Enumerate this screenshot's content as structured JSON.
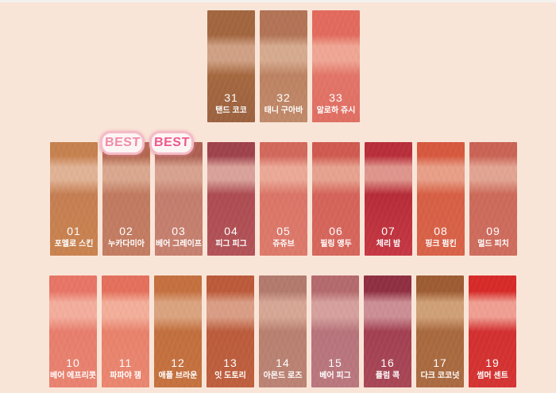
{
  "page": {
    "background": "#f9e5d8",
    "top_strip_color": "#f2f1ee"
  },
  "badges": [
    {
      "label": "BEST",
      "text_color": "#f18ba6",
      "fill": "#fdf5f4",
      "ring": "#f4bcc7"
    },
    {
      "label": "BEST",
      "text_color": "#ee5a8e",
      "fill": "#fdf5f4",
      "ring": "#f4bcc7"
    }
  ],
  "rows": [
    {
      "label": "shades-31-33",
      "shine": {
        "start": 32,
        "end": 45
      },
      "items": [
        {
          "num": "31",
          "name": "탠드 코코",
          "colors": {
            "top": "#a2663f",
            "shine": "#cfa084",
            "main": "#a5683f",
            "bottom": "#9c6240"
          }
        },
        {
          "num": "32",
          "name": "태니 구아바",
          "colors": {
            "top": "#b27356",
            "shine": "#d5aa8e",
            "main": "#bd8262",
            "bottom": "#c08a6a"
          }
        },
        {
          "num": "33",
          "name": "알로하 쥬시",
          "colors": {
            "top": "#e26a5d",
            "shine": "#efa694",
            "main": "#e27568",
            "bottom": "#e06f63"
          }
        }
      ]
    },
    {
      "label": "shades-01-09",
      "shine": {
        "start": 22,
        "end": 33
      },
      "items": [
        {
          "num": "01",
          "name": "포멜로 스킨",
          "colors": {
            "top": "#c6814f",
            "shine": "#e0b295",
            "main": "#c57e52",
            "bottom": "#c9834f"
          }
        },
        {
          "num": "02",
          "name": "누카다미아",
          "colors": {
            "top": "#b2674e",
            "shine": "#d9a78e",
            "main": "#c07a60",
            "bottom": "#c37d62"
          }
        },
        {
          "num": "03",
          "name": "베어 그레이프",
          "colors": {
            "top": "#ad6051",
            "shine": "#d7a28f",
            "main": "#c37d6d",
            "bottom": "#c6806f"
          }
        },
        {
          "num": "04",
          "name": "피그 피그",
          "colors": {
            "top": "#9e424b",
            "shine": "#d8a29a",
            "main": "#ad4c52",
            "bottom": "#b25358"
          }
        },
        {
          "num": "05",
          "name": "쥬쥬브",
          "colors": {
            "top": "#d2685c",
            "shine": "#eba896",
            "main": "#da7568",
            "bottom": "#dd7a6a"
          }
        },
        {
          "num": "06",
          "name": "필링 앵두",
          "colors": {
            "top": "#cf5a50",
            "shine": "#e6a28f",
            "main": "#d4635a",
            "bottom": "#d6675c"
          }
        },
        {
          "num": "07",
          "name": "체리 밤",
          "colors": {
            "top": "#b82e3a",
            "shine": "#de958c",
            "main": "#b62c38",
            "bottom": "#c53843"
          }
        },
        {
          "num": "08",
          "name": "핑크 펌킨",
          "colors": {
            "top": "#d6583e",
            "shine": "#e89f88",
            "main": "#d65f44",
            "bottom": "#d86248"
          }
        },
        {
          "num": "09",
          "name": "멀드 피치",
          "colors": {
            "top": "#c96355",
            "shine": "#e2a492",
            "main": "#cc6a5a",
            "bottom": "#ce6d5e"
          }
        }
      ]
    },
    {
      "label": "shades-10-19",
      "shine": {
        "start": 24,
        "end": 37
      },
      "items": [
        {
          "num": "10",
          "name": "베어 에프리콧",
          "colors": {
            "top": "#e77566",
            "shine": "#f3ad9c",
            "main": "#e77e6d",
            "bottom": "#e98270"
          }
        },
        {
          "num": "11",
          "name": "파파야 잼",
          "colors": {
            "top": "#e3705c",
            "shine": "#f3ae9a",
            "main": "#e8826c",
            "bottom": "#ea8670"
          }
        },
        {
          "num": "12",
          "name": "애플 브라운",
          "colors": {
            "top": "#c4703f",
            "shine": "#daa37f",
            "main": "#c26f3e",
            "bottom": "#c5723f"
          }
        },
        {
          "num": "13",
          "name": "잇 도토리",
          "colors": {
            "top": "#bb5a3a",
            "shine": "#d99d85",
            "main": "#bb5c3c",
            "bottom": "#be5f3e"
          }
        },
        {
          "num": "14",
          "name": "아몬드 로즈",
          "colors": {
            "top": "#b17a6d",
            "shine": "#d6a695",
            "main": "#b8806f",
            "bottom": "#bb8375"
          }
        },
        {
          "num": "15",
          "name": "베어 피그",
          "colors": {
            "top": "#b46a6c",
            "shine": "#d5a09e",
            "main": "#b7747b",
            "bottom": "#ba777e"
          }
        },
        {
          "num": "16",
          "name": "플럼 콕",
          "colors": {
            "top": "#8f2f41",
            "shine": "#cb8e94",
            "main": "#a24051",
            "bottom": "#a84757"
          }
        },
        {
          "num": "17",
          "name": "다크 코코넛",
          "colors": {
            "top": "#9d5c33",
            "shine": "#cfa077",
            "main": "#a8693f",
            "bottom": "#aa6b41"
          }
        },
        {
          "num": "19",
          "name": "썸머 센트",
          "colors": {
            "top": "#d62a28",
            "shine": "#ef9f92",
            "main": "#d23030",
            "bottom": "#d43432"
          }
        }
      ]
    }
  ]
}
